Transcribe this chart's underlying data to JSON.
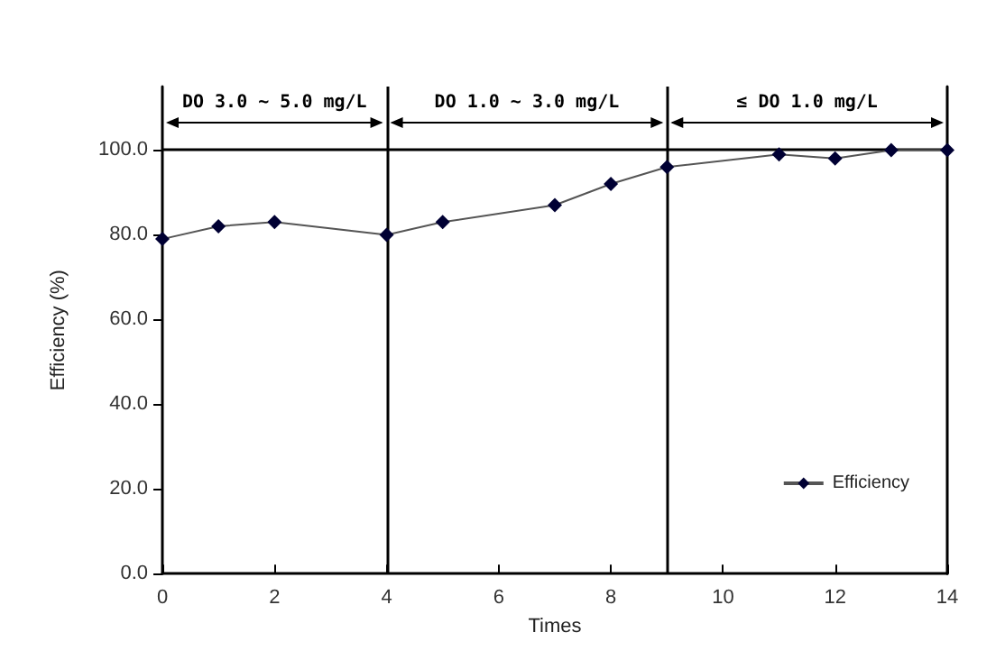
{
  "chart_data": {
    "type": "line",
    "xlabel": "Times",
    "ylabel": "Efficiency (%)",
    "x": [
      0,
      1,
      2,
      4,
      5,
      7,
      8,
      9,
      11,
      12,
      13,
      14
    ],
    "series": [
      {
        "name": "Efficiency",
        "color": "#000033",
        "values": [
          79,
          82,
          83,
          80,
          83,
          87,
          92,
          96,
          99,
          98,
          100,
          100
        ]
      }
    ],
    "xlim": [
      0,
      14
    ],
    "xticks": [
      0,
      2,
      4,
      6,
      8,
      10,
      12,
      14
    ],
    "ylim": [
      0,
      115
    ],
    "yticks": [
      {
        "value": 0,
        "label": "0.0"
      },
      {
        "value": 20,
        "label": "20.0"
      },
      {
        "value": 40,
        "label": "40.0"
      },
      {
        "value": 60,
        "label": "60.0"
      },
      {
        "value": 80,
        "label": "80.0"
      },
      {
        "value": 100,
        "label": "100.0"
      }
    ],
    "ref_lines": [
      {
        "axis": "y",
        "value": 100
      },
      {
        "axis": "x",
        "value": 4
      },
      {
        "axis": "x",
        "value": 9
      }
    ],
    "annotations": [
      "DO 3.0 ~ 5.0 mg/L",
      "DO 1.0 ~ 3.0 mg/L",
      "≤ DO 1.0 mg/L"
    ],
    "grid": false,
    "legend": "bottom right",
    "marker": "diamond",
    "line_style": "solid"
  }
}
